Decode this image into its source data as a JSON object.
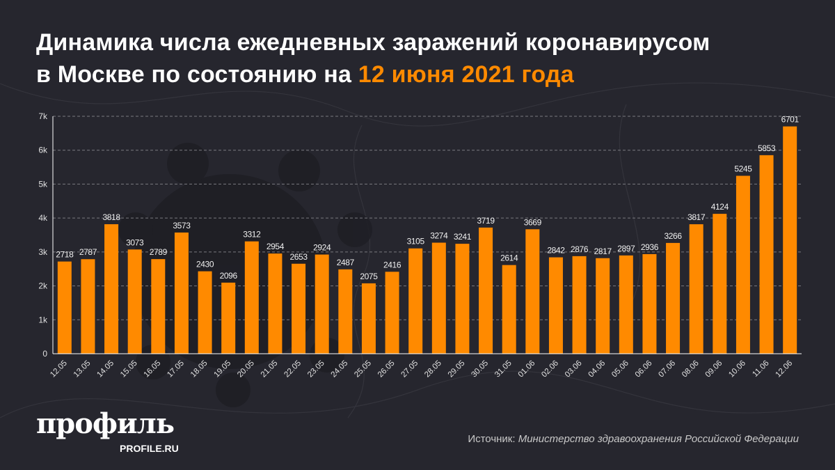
{
  "title": {
    "line1": "Динамика числа ежедневных заражений коронавирусом",
    "line2_prefix": "в Москве по состоянию на ",
    "line2_highlight": "12 июня 2021 года"
  },
  "source": {
    "label": "Источник: ",
    "value": "Министерство здравоохранения Российской Федерации"
  },
  "logo": {
    "main": "профиль",
    "sub": "PROFILE.RU"
  },
  "colors": {
    "bar": "#ff8a00",
    "background": "#26262e",
    "accent": "#ff8a00",
    "grid": "#7a7a80"
  },
  "chart_data": {
    "type": "bar",
    "title": "Динамика числа ежедневных заражений коронавирусом в Москве по состоянию на 12 июня 2021 года",
    "xlabel": "",
    "ylabel": "",
    "ylim": [
      0,
      7000
    ],
    "yticks": [
      0,
      1000,
      2000,
      3000,
      4000,
      5000,
      6000,
      7000
    ],
    "ytick_labels": [
      "0",
      "1k",
      "2k",
      "3k",
      "4k",
      "5k",
      "6k",
      "7k"
    ],
    "grid": true,
    "categories": [
      "12.05",
      "13.05",
      "14.05",
      "15.05",
      "16.05",
      "17.05",
      "18.05",
      "19.05",
      "20.05",
      "21.05",
      "22.05",
      "23.05",
      "24.05",
      "25.05",
      "26.05",
      "27.05",
      "28.05",
      "29.05",
      "30.05",
      "31.05",
      "01.06",
      "02.06",
      "03.06",
      "04.06",
      "05.06",
      "06.06",
      "07.06",
      "08.06",
      "09.06",
      "10.06",
      "11.06",
      "12.06"
    ],
    "values": [
      2718,
      2787,
      3818,
      3073,
      2789,
      3573,
      2430,
      2096,
      3312,
      2954,
      2653,
      2924,
      2487,
      2075,
      2416,
      3105,
      3274,
      3241,
      3719,
      2614,
      3669,
      2842,
      2876,
      2817,
      2897,
      2936,
      3266,
      3817,
      4124,
      5245,
      5853,
      6701
    ]
  }
}
